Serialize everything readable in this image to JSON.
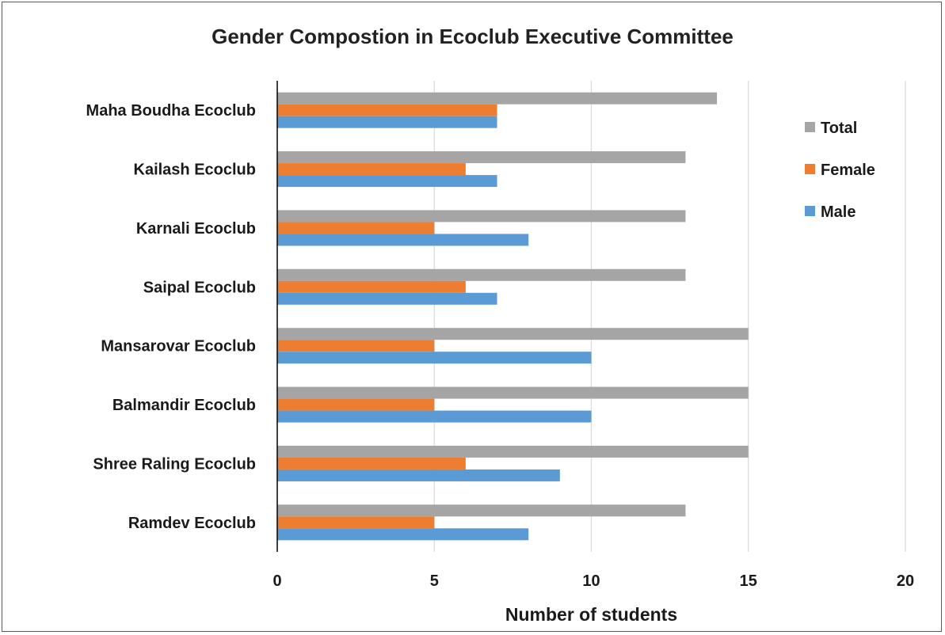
{
  "chart_data": {
    "type": "bar",
    "orientation": "horizontal",
    "title": "Gender Compostion in Ecoclub Executive Committee",
    "xlabel": "Number of students",
    "ylabel": "",
    "xlim": [
      0,
      20
    ],
    "xticks": [
      "0",
      "5",
      "10",
      "15",
      "20"
    ],
    "grid": true,
    "legend_position": "right",
    "categories": [
      "Maha Boudha Ecoclub",
      "Kailash Ecoclub",
      "Karnali Ecoclub",
      "Saipal Ecoclub",
      "Mansarovar Ecoclub",
      "Balmandir Ecoclub",
      "Shree Raling Ecoclub",
      "Ramdev Ecoclub"
    ],
    "series": [
      {
        "name": "Total",
        "color": "#a5a5a5",
        "values": [
          14,
          13,
          13,
          13,
          15,
          15,
          15,
          13
        ]
      },
      {
        "name": "Female",
        "color": "#ed7d31",
        "values": [
          7,
          6,
          5,
          6,
          5,
          5,
          6,
          5
        ]
      },
      {
        "name": "Male",
        "color": "#5b9bd5",
        "values": [
          7,
          7,
          8,
          7,
          10,
          10,
          9,
          8
        ]
      }
    ]
  }
}
